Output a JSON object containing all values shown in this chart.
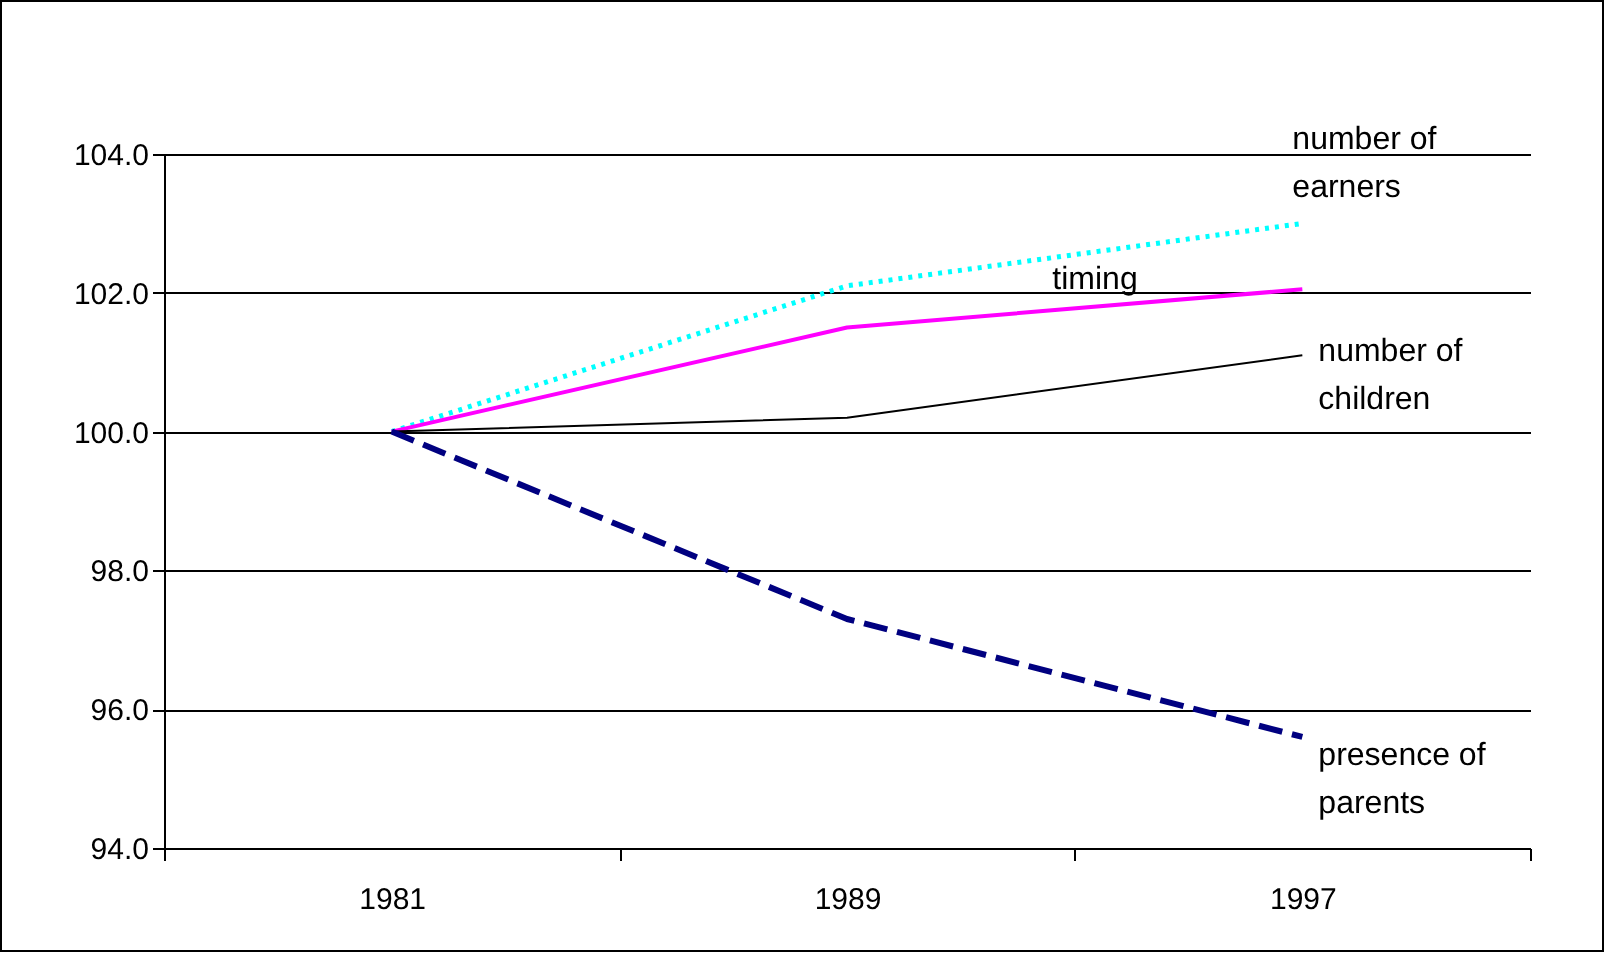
{
  "chart_data": {
    "type": "line",
    "categories": [
      "1981",
      "1989",
      "1997"
    ],
    "series": [
      {
        "name": "number of earners",
        "color": "#00ffff",
        "line_style": "dotted",
        "values": [
          100.0,
          102.1,
          103.0
        ]
      },
      {
        "name": "timing",
        "color": "#ff00ff",
        "line_style": "solid",
        "values": [
          100.0,
          101.5,
          102.05
        ]
      },
      {
        "name": "number of children",
        "color": "#000000",
        "line_style": "solid",
        "values": [
          100.0,
          100.2,
          101.1
        ]
      },
      {
        "name": "presence of parents",
        "color": "#000080",
        "line_style": "dashed",
        "values": [
          100.0,
          97.3,
          95.6
        ]
      }
    ],
    "ylim": [
      94.0,
      104.0
    ],
    "yticks": [
      {
        "value": 94,
        "label": "94.0"
      },
      {
        "value": 96,
        "label": "96.0"
      },
      {
        "value": 98,
        "label": "98.0"
      },
      {
        "value": 100,
        "label": "100.0"
      },
      {
        "value": 102,
        "label": "102.0"
      },
      {
        "value": 104,
        "label": "104.0"
      }
    ],
    "grid": "y"
  }
}
